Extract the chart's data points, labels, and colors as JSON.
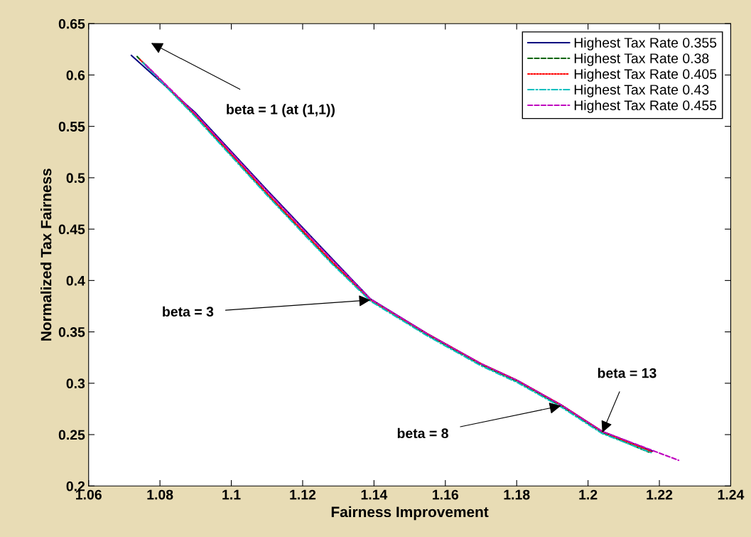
{
  "chart_data": {
    "type": "line",
    "xlabel": "Fairness Improvement",
    "ylabel": "Normalized Tax Fairness",
    "xlim": [
      1.06,
      1.24
    ],
    "xticks": [
      1.06,
      1.08,
      1.1,
      1.12,
      1.14,
      1.16,
      1.18,
      1.2,
      1.22,
      1.24
    ],
    "ylim": [
      0.2,
      0.65
    ],
    "yticks": [
      0.2,
      0.25,
      0.3,
      0.35,
      0.4,
      0.45,
      0.5,
      0.55,
      0.6,
      0.65
    ],
    "grid": false,
    "legend": "top right",
    "series": [
      {
        "name": "Highest Tax Rate 0.355",
        "color": "#000080",
        "line_style": "solid",
        "x": [
          1.072,
          1.09,
          1.11,
          1.128,
          1.139,
          1.155,
          1.17,
          1.18,
          1.1924,
          1.204,
          1.218
        ],
        "values": [
          0.619,
          0.563,
          0.488,
          0.422,
          0.382,
          0.348,
          0.319,
          0.303,
          0.279,
          0.253,
          0.234
        ]
      },
      {
        "name": "Highest Tax Rate 0.38",
        "color": "#006400",
        "line_style": "dashed",
        "x": [
          1.0736,
          1.09,
          1.11,
          1.128,
          1.139,
          1.155,
          1.17,
          1.18,
          1.1924,
          1.204,
          1.217
        ],
        "values": [
          0.618,
          0.56,
          0.484,
          0.418,
          0.381,
          0.347,
          0.318,
          0.302,
          0.278,
          0.252,
          0.233
        ]
      },
      {
        "name": "Highest Tax Rate 0.405",
        "color": "#ff0000",
        "line_style": "dotted",
        "x": [
          1.0744,
          1.09,
          1.11,
          1.128,
          1.139,
          1.155,
          1.17,
          1.18,
          1.1924,
          1.204,
          1.218
        ],
        "values": [
          0.615,
          0.561,
          0.485,
          0.419,
          0.381,
          0.348,
          0.319,
          0.303,
          0.279,
          0.253,
          0.233
        ]
      },
      {
        "name": "Highest Tax Rate 0.43",
        "color": "#00bfbf",
        "line_style": "dashdot",
        "x": [
          1.0752,
          1.09,
          1.11,
          1.128,
          1.139,
          1.155,
          1.17,
          1.18,
          1.1924,
          1.204,
          1.218
        ],
        "values": [
          0.612,
          0.559,
          0.483,
          0.417,
          0.38,
          0.346,
          0.317,
          0.301,
          0.277,
          0.251,
          0.232
        ]
      },
      {
        "name": "Highest Tax Rate 0.455",
        "color": "#bf00bf",
        "line_style": "dashed",
        "x": [
          1.076,
          1.09,
          1.11,
          1.128,
          1.139,
          1.155,
          1.17,
          1.18,
          1.1924,
          1.204,
          1.2254
        ],
        "values": [
          0.61,
          0.562,
          0.487,
          0.421,
          0.382,
          0.348,
          0.319,
          0.303,
          0.279,
          0.253,
          0.225
        ]
      }
    ],
    "annotations": [
      "beta = 1 (at (1,1))",
      {
        "text": "beta = 3",
        "x": 1.139,
        "y": 0.381
      },
      {
        "text": "beta = 8",
        "x": 1.1924,
        "y": 0.278
      },
      {
        "text": "beta = 13",
        "x": 1.204,
        "y": 0.252
      }
    ]
  }
}
